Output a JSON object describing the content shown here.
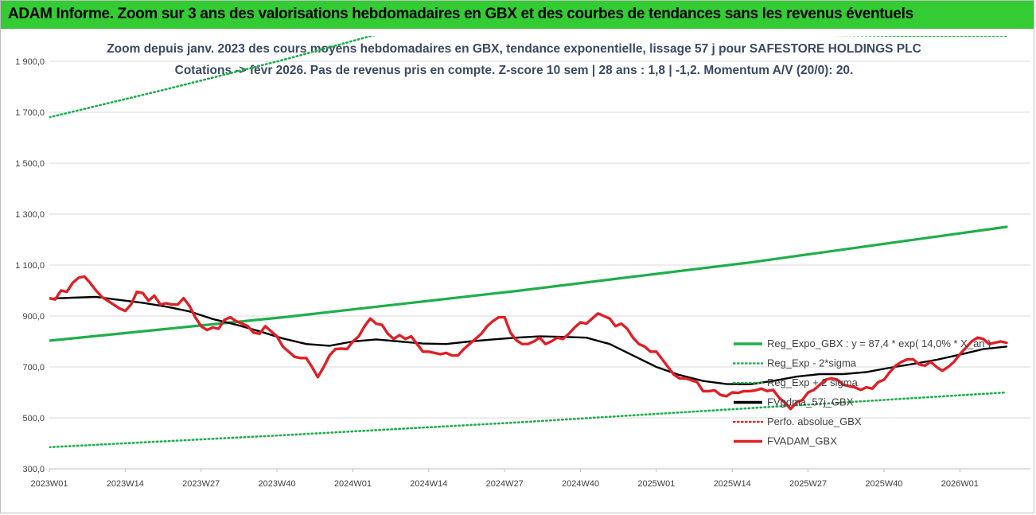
{
  "banner": {
    "title": "ADAM Informe. Zoom sur 3 ans des valorisations hebdomadaires en GBX et des courbes de tendances sans les revenus éventuels"
  },
  "chart_data": {
    "type": "line",
    "subtitle_line1": "Zoom depuis janv. 2023 des cours moyens hebdomadaires en GBX, tendance exponentielle, lissage 57 j pour SAFESTORE HOLDINGS PLC",
    "subtitle_line2": "Cotations -> févr 2026. Pas de revenus pris en compte. Z-score 10 sem | 28 ans : 1,8 | -1,2. Momentum A/V (20/0): 20.",
    "ylim": [
      300,
      2000
    ],
    "yticks": [
      "300,0",
      "500,0",
      "700,0",
      "900,0",
      "1 100,0",
      "1 300,0",
      "1 500,0",
      "1 700,0",
      "1 900,0"
    ],
    "ytick_values": [
      300,
      500,
      700,
      900,
      1100,
      1300,
      1500,
      1700,
      1900
    ],
    "x_range": [
      0,
      164
    ],
    "xticks": [
      "2023W01",
      "2023W14",
      "2023W27",
      "2023W40",
      "2024W01",
      "2024W14",
      "2024W27",
      "2024W40",
      "2025W01",
      "2025W14",
      "2025W27",
      "2025W40",
      "2026W01"
    ],
    "xtick_values": [
      0,
      13,
      26,
      39,
      52,
      65,
      78,
      91,
      104,
      117,
      130,
      143,
      156
    ],
    "legend_position": "right",
    "series": [
      {
        "name": "Reg_Expo_GBX : y = 87,4 * exp( 14,0% * X_an )",
        "color": "#1fae4b",
        "style": "solid",
        "points": [
          [
            0,
            803
          ],
          [
            40,
            895
          ],
          [
            80,
            998
          ],
          [
            120,
            1110
          ],
          [
            164,
            1250
          ]
        ]
      },
      {
        "name": "Reg_Exp - 2*sigma",
        "color": "#1fae4b",
        "style": "dotted",
        "points": [
          [
            0,
            385
          ],
          [
            40,
            432
          ],
          [
            80,
            482
          ],
          [
            120,
            538
          ],
          [
            164,
            600
          ]
        ]
      },
      {
        "name": "Reg_Exp + 2 sigma",
        "color": "#1fae4b",
        "style": "dotted",
        "points": [
          [
            0,
            1680
          ],
          [
            20,
            1790
          ],
          [
            40,
            1905
          ],
          [
            52,
            1980
          ],
          [
            60,
            2030
          ],
          [
            145,
            2000
          ],
          [
            164,
            2000
          ]
        ]
      },
      {
        "name": "FVgdma_57j_GBX",
        "color": "#000000",
        "style": "solid",
        "points": [
          [
            0,
            968
          ],
          [
            4,
            972
          ],
          [
            8,
            975
          ],
          [
            12,
            963
          ],
          [
            16,
            952
          ],
          [
            20,
            937
          ],
          [
            24,
            918
          ],
          [
            28,
            888
          ],
          [
            32,
            866
          ],
          [
            36,
            840
          ],
          [
            40,
            812
          ],
          [
            44,
            790
          ],
          [
            48,
            783
          ],
          [
            52,
            800
          ],
          [
            56,
            808
          ],
          [
            60,
            800
          ],
          [
            64,
            792
          ],
          [
            68,
            790
          ],
          [
            72,
            800
          ],
          [
            76,
            808
          ],
          [
            80,
            815
          ],
          [
            84,
            820
          ],
          [
            88,
            818
          ],
          [
            92,
            815
          ],
          [
            96,
            790
          ],
          [
            100,
            745
          ],
          [
            104,
            700
          ],
          [
            108,
            668
          ],
          [
            112,
            645
          ],
          [
            116,
            633
          ],
          [
            120,
            632
          ],
          [
            124,
            645
          ],
          [
            128,
            662
          ],
          [
            132,
            672
          ],
          [
            136,
            672
          ],
          [
            140,
            680
          ],
          [
            144,
            697
          ],
          [
            148,
            712
          ],
          [
            152,
            728
          ],
          [
            156,
            748
          ],
          [
            160,
            770
          ],
          [
            164,
            780
          ]
        ]
      },
      {
        "name": "Perfo. absolue_GBX",
        "color": "#d9262a",
        "style": "dotted",
        "points": []
      },
      {
        "name": "FVADAM_GBX",
        "color": "#e01f26",
        "style": "solid",
        "points": [
          [
            0,
            970
          ],
          [
            1,
            965
          ],
          [
            2,
            1000
          ],
          [
            3,
            995
          ],
          [
            4,
            1030
          ],
          [
            5,
            1050
          ],
          [
            6,
            1055
          ],
          [
            7,
            1030
          ],
          [
            8,
            1000
          ],
          [
            9,
            975
          ],
          [
            10,
            960
          ],
          [
            11,
            945
          ],
          [
            12,
            930
          ],
          [
            13,
            920
          ],
          [
            14,
            945
          ],
          [
            15,
            995
          ],
          [
            16,
            990
          ],
          [
            17,
            960
          ],
          [
            18,
            980
          ],
          [
            19,
            945
          ],
          [
            20,
            950
          ],
          [
            21,
            945
          ],
          [
            22,
            945
          ],
          [
            23,
            970
          ],
          [
            24,
            940
          ],
          [
            25,
            895
          ],
          [
            26,
            860
          ],
          [
            27,
            845
          ],
          [
            28,
            855
          ],
          [
            29,
            850
          ],
          [
            30,
            885
          ],
          [
            31,
            895
          ],
          [
            32,
            880
          ],
          [
            33,
            870
          ],
          [
            34,
            860
          ],
          [
            35,
            835
          ],
          [
            36,
            830
          ],
          [
            37,
            860
          ],
          [
            38,
            840
          ],
          [
            39,
            820
          ],
          [
            40,
            780
          ],
          [
            41,
            760
          ],
          [
            42,
            740
          ],
          [
            43,
            735
          ],
          [
            44,
            735
          ],
          [
            45,
            700
          ],
          [
            46,
            660
          ],
          [
            47,
            700
          ],
          [
            48,
            745
          ],
          [
            49,
            770
          ],
          [
            50,
            772
          ],
          [
            51,
            770
          ],
          [
            52,
            800
          ],
          [
            53,
            820
          ],
          [
            54,
            860
          ],
          [
            55,
            890
          ],
          [
            56,
            870
          ],
          [
            57,
            865
          ],
          [
            58,
            830
          ],
          [
            59,
            810
          ],
          [
            60,
            825
          ],
          [
            61,
            810
          ],
          [
            62,
            820
          ],
          [
            63,
            790
          ],
          [
            64,
            760
          ],
          [
            65,
            760
          ],
          [
            66,
            755
          ],
          [
            67,
            750
          ],
          [
            68,
            755
          ],
          [
            69,
            745
          ],
          [
            70,
            745
          ],
          [
            71,
            770
          ],
          [
            72,
            790
          ],
          [
            73,
            810
          ],
          [
            74,
            830
          ],
          [
            75,
            860
          ],
          [
            76,
            880
          ],
          [
            77,
            895
          ],
          [
            78,
            895
          ],
          [
            79,
            835
          ],
          [
            80,
            805
          ],
          [
            81,
            790
          ],
          [
            82,
            790
          ],
          [
            83,
            800
          ],
          [
            84,
            815
          ],
          [
            85,
            790
          ],
          [
            86,
            800
          ],
          [
            87,
            815
          ],
          [
            88,
            810
          ],
          [
            89,
            830
          ],
          [
            90,
            855
          ],
          [
            91,
            875
          ],
          [
            92,
            870
          ],
          [
            93,
            890
          ],
          [
            94,
            910
          ],
          [
            95,
            900
          ],
          [
            96,
            890
          ],
          [
            97,
            860
          ],
          [
            98,
            870
          ],
          [
            99,
            850
          ],
          [
            100,
            815
          ],
          [
            101,
            790
          ],
          [
            102,
            780
          ],
          [
            103,
            760
          ],
          [
            104,
            760
          ],
          [
            105,
            730
          ],
          [
            106,
            700
          ],
          [
            107,
            670
          ],
          [
            108,
            655
          ],
          [
            109,
            655
          ],
          [
            110,
            648
          ],
          [
            111,
            640
          ],
          [
            112,
            605
          ],
          [
            113,
            605
          ],
          [
            114,
            608
          ],
          [
            115,
            590
          ],
          [
            116,
            585
          ],
          [
            117,
            600
          ],
          [
            118,
            598
          ],
          [
            119,
            605
          ],
          [
            120,
            605
          ],
          [
            121,
            608
          ],
          [
            122,
            615
          ],
          [
            123,
            605
          ],
          [
            124,
            610
          ],
          [
            125,
            580
          ],
          [
            126,
            560
          ],
          [
            127,
            535
          ],
          [
            128,
            560
          ],
          [
            129,
            570
          ],
          [
            130,
            600
          ],
          [
            131,
            610
          ],
          [
            132,
            630
          ],
          [
            133,
            650
          ],
          [
            134,
            655
          ],
          [
            135,
            650
          ],
          [
            136,
            630
          ],
          [
            137,
            625
          ],
          [
            138,
            620
          ],
          [
            139,
            610
          ],
          [
            140,
            620
          ],
          [
            141,
            615
          ],
          [
            142,
            640
          ],
          [
            143,
            650
          ],
          [
            144,
            680
          ],
          [
            145,
            705
          ],
          [
            146,
            720
          ],
          [
            147,
            730
          ],
          [
            148,
            730
          ],
          [
            149,
            710
          ],
          [
            150,
            705
          ],
          [
            151,
            720
          ],
          [
            152,
            700
          ],
          [
            153,
            685
          ],
          [
            154,
            700
          ],
          [
            155,
            720
          ],
          [
            156,
            750
          ],
          [
            157,
            775
          ],
          [
            158,
            800
          ],
          [
            159,
            815
          ],
          [
            160,
            810
          ],
          [
            161,
            790
          ],
          [
            162,
            795
          ],
          [
            163,
            800
          ],
          [
            164,
            795
          ]
        ]
      }
    ]
  }
}
